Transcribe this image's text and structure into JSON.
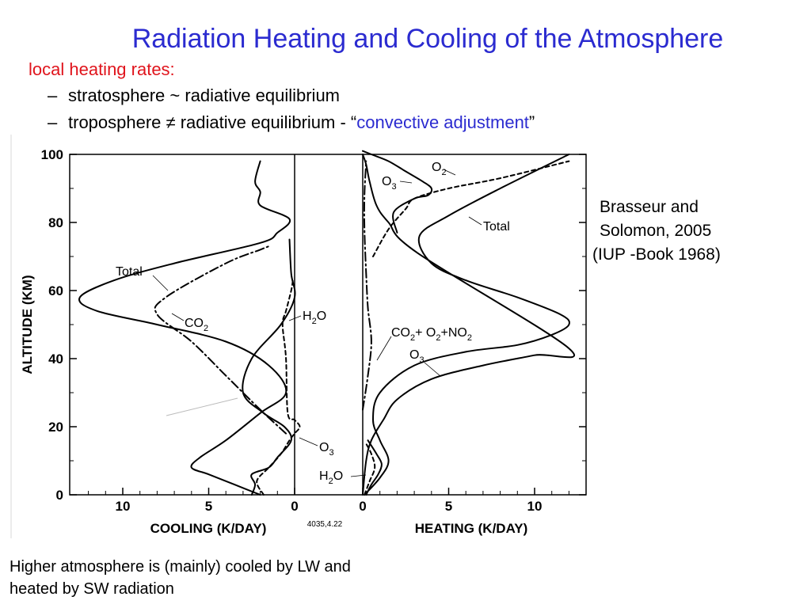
{
  "slide": {
    "title": "Radiation Heating and Cooling of the Atmosphere",
    "subtitle": "local heating rates:",
    "bullets": [
      {
        "dash": "–",
        "text": "stratosphere ~ radiative equilibrium"
      },
      {
        "dash": "–",
        "pre": "troposphere ≠ radiative equilibrium - “",
        "highlight": "convective adjustment",
        "post": "”"
      }
    ],
    "citation": [
      "Brasseur and",
      "Solomon, 2005",
      "(IUP -Book 1968)"
    ],
    "footnote": [
      "Higher atmosphere is (mainly) cooled by LW and",
      "heated by SW radiation"
    ],
    "colors": {
      "title": "#2b2bd0",
      "subtitle": "#e0141c",
      "highlight": "#2b2bd0"
    }
  },
  "chart_data": {
    "type": "line",
    "figure_code": "4035,4.22",
    "y_axis": {
      "label": "ALTITUDE (KM)",
      "ticks": [
        0,
        20,
        40,
        60,
        80,
        100
      ],
      "range": [
        0,
        100
      ]
    },
    "panels": [
      {
        "id": "cooling",
        "xlabel": "COOLING (K/DAY)",
        "ticks": [
          10,
          5,
          0
        ],
        "x_range": [
          13,
          0
        ],
        "series": [
          {
            "name": "Total",
            "style": "solid",
            "x": [
              2,
              3.5,
              5,
              6,
              5.5,
              4,
              2,
              0.5,
              1.5,
              4,
              8,
              11.5,
              12.5,
              10.5,
              7,
              2,
              1,
              0.3,
              2,
              2,
              2.3,
              2
            ],
            "y": [
              0,
              3,
              6,
              8,
              11,
              16,
              24,
              30,
              38,
              45,
              50,
              54,
              58,
              63,
              68,
              74,
              77,
              81,
              85,
              89,
              92,
              98
            ]
          },
          {
            "name": "CO2",
            "style": "dashdot",
            "x": [
              0.5,
              2,
              4,
              6,
              8,
              7.5,
              4,
              2,
              1.5
            ],
            "y": [
              18,
              25,
              35,
              45,
              53,
              58,
              68,
              72,
              73
            ]
          },
          {
            "name": "H2O",
            "style": "solid",
            "x": [
              2.5,
              2.3,
              2.5,
              1.5,
              1,
              0.2,
              0.6,
              1.8,
              3,
              2.5,
              0.8,
              0,
              0.2,
              0.3
            ],
            "y": [
              0,
              3,
              6,
              8,
              11,
              16,
              20,
              24,
              30,
              40,
              50,
              58,
              65,
              75
            ]
          },
          {
            "name": "H2O",
            "style": "dashed",
            "x": [
              1.8,
              2.2,
              1.5,
              0.8,
              0.3,
              0,
              -0.3,
              0,
              0.4,
              0.5,
              0.7,
              0.5,
              0.2,
              0.1
            ],
            "y": [
              0,
              4,
              8,
              12,
              16,
              18,
              20,
              22,
              24,
              40,
              50,
              54,
              60,
              63
            ]
          }
        ],
        "annotations": [
          "Total",
          "CO2",
          "H2O",
          "O3"
        ]
      },
      {
        "id": "heating",
        "xlabel": "HEATING (K/DAY)",
        "ticks": [
          0,
          5,
          10
        ],
        "x_range": [
          0,
          13
        ],
        "series": [
          {
            "name": "Total",
            "style": "solid",
            "x": [
              0.1,
              1,
              1.5,
              1,
              0.6,
              1,
              3,
              6,
              9,
              11,
              12,
              11.5,
              9,
              6,
              4,
              3.3,
              5,
              8,
              12
            ],
            "y": [
              0,
              5,
              10,
              16,
              22,
              30,
              38,
              42,
              44,
              47,
              50,
              53,
              58,
              63,
              68,
              76,
              82,
              90,
              100
            ]
          },
          {
            "name": "O3",
            "style": "solid",
            "x": [
              0,
              0.2,
              0.5,
              1.2,
              2,
              4,
              7,
              10,
              12,
              3.2,
              1.5,
              0.8,
              0.4,
              0.2,
              0
            ],
            "y": [
              0,
              10,
              16,
              22,
              28,
              34,
              38,
              41,
              43,
              71,
              80,
              85,
              92,
              97,
              100
            ]
          },
          {
            "name": "CO2+ O2+NO2",
            "style": "dashdot",
            "x": [
              0,
              0.3,
              0.5,
              0.3,
              0.2,
              0.1,
              0.1,
              0.2
            ],
            "y": [
              25,
              35,
              45,
              55,
              65,
              78,
              88,
              98
            ]
          },
          {
            "name": "O2",
            "style": "dashed",
            "x": [
              0.6,
              1.5,
              2.5,
              3,
              5,
              8,
              12
            ],
            "y": [
              70,
              78,
              84,
              87,
              90,
              93,
              98
            ]
          },
          {
            "name": "O3",
            "style": "solid",
            "x": [
              2,
              1.8,
              3,
              3.8,
              4,
              3.5,
              2.5,
              1.5,
              0.5,
              0
            ],
            "y": [
              77,
              83,
              87,
              88,
              90,
              92,
              95,
              98,
              100,
              101
            ]
          },
          {
            "name": "H2O",
            "style": "solid",
            "x": [
              0.2,
              0.5,
              0.9,
              1.1,
              0.8,
              0.3
            ],
            "y": [
              0,
              3,
              6,
              9,
              12,
              16
            ]
          },
          {
            "name": "H2O",
            "style": "dashed",
            "x": [
              0.1,
              0.4,
              0.7,
              0.5,
              0.2
            ],
            "y": [
              0,
              4,
              8,
              12,
              15
            ]
          }
        ],
        "annotations": [
          "O2",
          "O3",
          "Total",
          "CO2+ O2+NO2",
          "O3",
          "H2O"
        ]
      }
    ]
  }
}
